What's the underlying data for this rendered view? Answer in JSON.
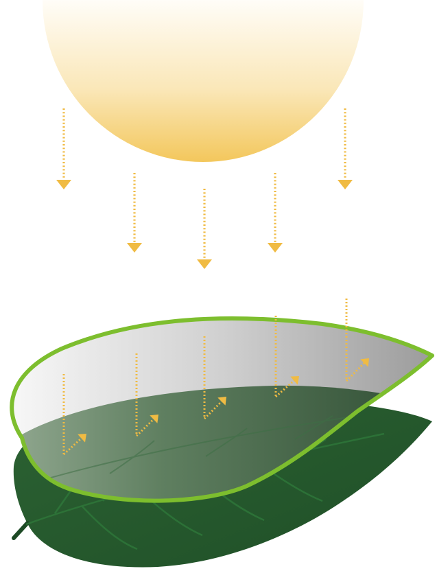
{
  "diagram": {
    "subject": "sunlight-passing-through-leaf-surface",
    "elements": [
      "sun",
      "incoming-light-rays",
      "leaf-upper-surface",
      "leaf-body",
      "refracted-light-rays"
    ],
    "incoming_ray_count": 5,
    "refracted_ray_count": 5
  },
  "colors": {
    "sun_top": "#fffdf8",
    "sun_bottom": "#f3c75c",
    "light_ray": "#f0bb43",
    "leaf_outline": "#7dbe2e",
    "leaf_dark": "#24572b",
    "leaf_mid": "#3f7a45",
    "translucent_light": "#f6f6f6",
    "translucent_dark": "#9a9a9a",
    "vein": "#2f7a3b"
  }
}
